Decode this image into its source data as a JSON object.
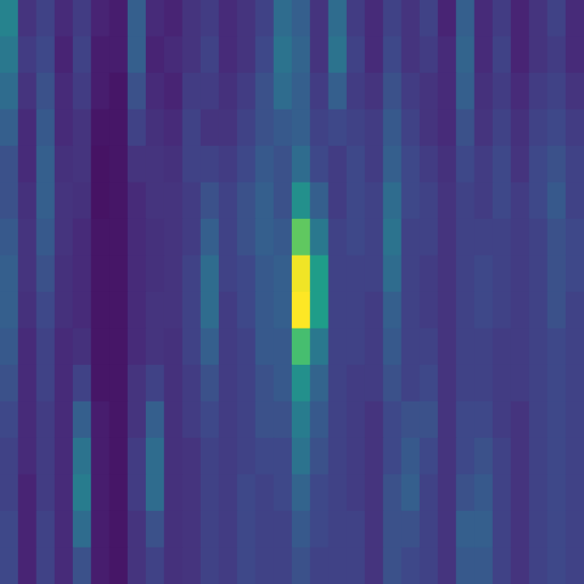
{
  "chart_data": {
    "type": "heatmap",
    "color": "viridis",
    "zlim": [
      0,
      1
    ],
    "tick_labels": false,
    "cells": [
      [
        0.45,
        0.15,
        0.2,
        0.12,
        0.18,
        0.1,
        0.08,
        0.3,
        0.12,
        0.1,
        0.15,
        0.18,
        0.12,
        0.15,
        0.2,
        0.35,
        0.3,
        0.15,
        0.35,
        0.18,
        0.12,
        0.2,
        0.15,
        0.2,
        0.1,
        0.3,
        0.12,
        0.18,
        0.1,
        0.15,
        0.2,
        0.12
      ],
      [
        0.4,
        0.18,
        0.22,
        0.1,
        0.2,
        0.08,
        0.08,
        0.3,
        0.1,
        0.12,
        0.15,
        0.2,
        0.12,
        0.15,
        0.22,
        0.38,
        0.32,
        0.15,
        0.38,
        0.2,
        0.12,
        0.22,
        0.15,
        0.18,
        0.12,
        0.32,
        0.12,
        0.2,
        0.1,
        0.15,
        0.18,
        0.12
      ],
      [
        0.35,
        0.15,
        0.25,
        0.12,
        0.18,
        0.08,
        0.06,
        0.25,
        0.12,
        0.1,
        0.18,
        0.18,
        0.14,
        0.18,
        0.25,
        0.35,
        0.3,
        0.18,
        0.3,
        0.18,
        0.15,
        0.25,
        0.18,
        0.15,
        0.12,
        0.3,
        0.14,
        0.18,
        0.12,
        0.18,
        0.2,
        0.15
      ],
      [
        0.3,
        0.12,
        0.28,
        0.12,
        0.15,
        0.06,
        0.06,
        0.2,
        0.14,
        0.12,
        0.2,
        0.15,
        0.15,
        0.2,
        0.25,
        0.28,
        0.3,
        0.2,
        0.22,
        0.2,
        0.18,
        0.28,
        0.2,
        0.15,
        0.12,
        0.25,
        0.15,
        0.2,
        0.14,
        0.2,
        0.22,
        0.18
      ],
      [
        0.25,
        0.12,
        0.3,
        0.14,
        0.15,
        0.05,
        0.06,
        0.15,
        0.15,
        0.14,
        0.2,
        0.2,
        0.18,
        0.22,
        0.28,
        0.25,
        0.35,
        0.22,
        0.18,
        0.22,
        0.18,
        0.3,
        0.22,
        0.18,
        0.14,
        0.22,
        0.18,
        0.22,
        0.15,
        0.22,
        0.25,
        0.2
      ],
      [
        0.25,
        0.14,
        0.3,
        0.15,
        0.14,
        0.05,
        0.06,
        0.12,
        0.15,
        0.15,
        0.18,
        0.25,
        0.2,
        0.25,
        0.3,
        0.25,
        0.5,
        0.3,
        0.18,
        0.22,
        0.2,
        0.35,
        0.22,
        0.2,
        0.15,
        0.2,
        0.18,
        0.22,
        0.18,
        0.22,
        0.28,
        0.2
      ],
      [
        0.28,
        0.15,
        0.28,
        0.15,
        0.12,
        0.06,
        0.06,
        0.12,
        0.14,
        0.15,
        0.18,
        0.3,
        0.2,
        0.25,
        0.3,
        0.28,
        0.75,
        0.4,
        0.2,
        0.22,
        0.2,
        0.38,
        0.2,
        0.2,
        0.15,
        0.2,
        0.2,
        0.2,
        0.18,
        0.2,
        0.25,
        0.22
      ],
      [
        0.3,
        0.15,
        0.25,
        0.14,
        0.12,
        0.06,
        0.06,
        0.12,
        0.14,
        0.15,
        0.2,
        0.35,
        0.2,
        0.22,
        0.28,
        0.3,
        0.98,
        0.55,
        0.2,
        0.2,
        0.2,
        0.35,
        0.2,
        0.18,
        0.15,
        0.2,
        0.22,
        0.2,
        0.18,
        0.2,
        0.25,
        0.22
      ],
      [
        0.3,
        0.14,
        0.22,
        0.14,
        0.12,
        0.06,
        0.06,
        0.12,
        0.15,
        0.15,
        0.2,
        0.35,
        0.18,
        0.22,
        0.28,
        0.3,
        1.0,
        0.55,
        0.2,
        0.2,
        0.18,
        0.3,
        0.2,
        0.18,
        0.15,
        0.2,
        0.22,
        0.2,
        0.18,
        0.2,
        0.25,
        0.2
      ],
      [
        0.28,
        0.12,
        0.2,
        0.12,
        0.14,
        0.06,
        0.06,
        0.12,
        0.15,
        0.14,
        0.2,
        0.3,
        0.18,
        0.2,
        0.28,
        0.28,
        0.7,
        0.4,
        0.2,
        0.2,
        0.18,
        0.28,
        0.2,
        0.2,
        0.15,
        0.2,
        0.2,
        0.18,
        0.18,
        0.2,
        0.22,
        0.2
      ],
      [
        0.25,
        0.12,
        0.2,
        0.12,
        0.2,
        0.06,
        0.06,
        0.15,
        0.2,
        0.14,
        0.18,
        0.25,
        0.18,
        0.2,
        0.25,
        0.28,
        0.5,
        0.32,
        0.2,
        0.18,
        0.18,
        0.25,
        0.2,
        0.22,
        0.15,
        0.2,
        0.2,
        0.18,
        0.18,
        0.2,
        0.22,
        0.2
      ],
      [
        0.22,
        0.12,
        0.18,
        0.12,
        0.3,
        0.08,
        0.06,
        0.15,
        0.3,
        0.14,
        0.18,
        0.22,
        0.18,
        0.2,
        0.25,
        0.25,
        0.42,
        0.28,
        0.2,
        0.18,
        0.15,
        0.22,
        0.25,
        0.25,
        0.15,
        0.22,
        0.22,
        0.18,
        0.15,
        0.2,
        0.22,
        0.2
      ],
      [
        0.2,
        0.12,
        0.18,
        0.12,
        0.38,
        0.08,
        0.06,
        0.18,
        0.35,
        0.14,
        0.15,
        0.2,
        0.18,
        0.2,
        0.22,
        0.22,
        0.38,
        0.25,
        0.2,
        0.18,
        0.15,
        0.22,
        0.28,
        0.22,
        0.15,
        0.22,
        0.25,
        0.2,
        0.15,
        0.2,
        0.22,
        0.2
      ],
      [
        0.2,
        0.1,
        0.18,
        0.12,
        0.42,
        0.08,
        0.06,
        0.18,
        0.35,
        0.14,
        0.15,
        0.2,
        0.18,
        0.22,
        0.2,
        0.22,
        0.32,
        0.22,
        0.2,
        0.18,
        0.15,
        0.25,
        0.3,
        0.2,
        0.15,
        0.25,
        0.28,
        0.2,
        0.15,
        0.2,
        0.22,
        0.2
      ],
      [
        0.22,
        0.1,
        0.2,
        0.12,
        0.35,
        0.08,
        0.06,
        0.15,
        0.25,
        0.14,
        0.15,
        0.2,
        0.18,
        0.22,
        0.2,
        0.2,
        0.28,
        0.22,
        0.2,
        0.2,
        0.15,
        0.25,
        0.25,
        0.2,
        0.15,
        0.3,
        0.3,
        0.2,
        0.15,
        0.2,
        0.22,
        0.2
      ],
      [
        0.22,
        0.1,
        0.2,
        0.12,
        0.25,
        0.08,
        0.06,
        0.15,
        0.2,
        0.14,
        0.15,
        0.2,
        0.18,
        0.22,
        0.2,
        0.2,
        0.25,
        0.2,
        0.2,
        0.2,
        0.15,
        0.25,
        0.22,
        0.2,
        0.15,
        0.28,
        0.28,
        0.2,
        0.15,
        0.2,
        0.22,
        0.2
      ]
    ]
  }
}
